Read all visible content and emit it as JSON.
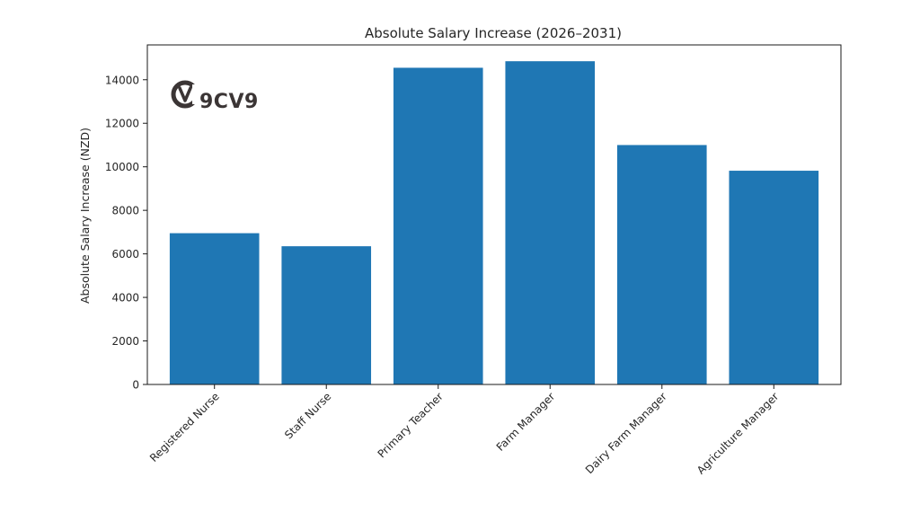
{
  "chart_data": {
    "type": "bar",
    "title": "Absolute Salary Increase (2026–2031)",
    "xlabel": "",
    "ylabel": "Absolute Salary Increase (NZD)",
    "categories": [
      "Registered Nurse",
      "Staff Nurse",
      "Primary Teacher",
      "Farm Manager",
      "Dairy Farm Manager",
      "Agriculture Manager"
    ],
    "values": [
      6950,
      6350,
      14550,
      14850,
      11000,
      9820
    ],
    "ylim": [
      0,
      15600
    ],
    "yticks": [
      0,
      2000,
      4000,
      6000,
      8000,
      10000,
      12000,
      14000
    ],
    "ytick_labels": [
      "0",
      "2000",
      "4000",
      "6000",
      "8000",
      "10000",
      "12000",
      "14000"
    ],
    "grid": false,
    "bar_color": "#1f77b4"
  },
  "watermark": {
    "text": "9CV9",
    "icon": "9cv9-logo-icon",
    "color": "#3b3535"
  }
}
